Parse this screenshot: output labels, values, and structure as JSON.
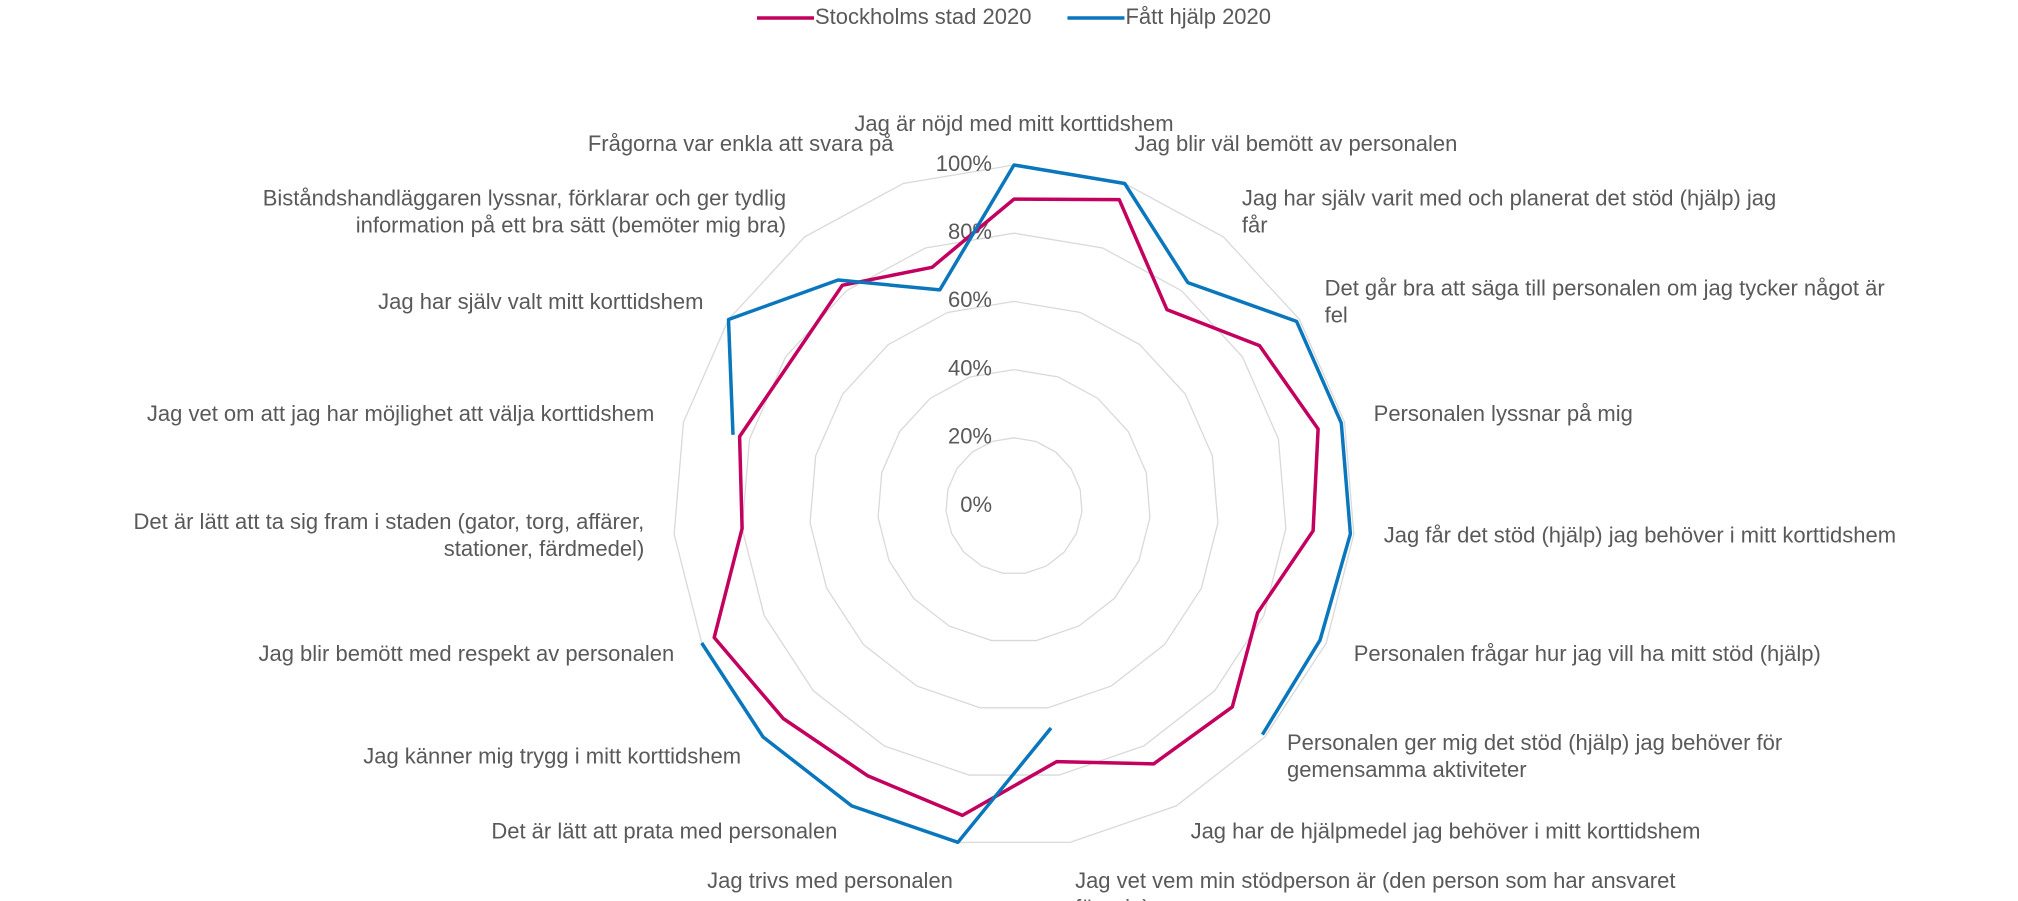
{
  "chart_data": {
    "type": "radar",
    "categories": [
      "Jag är nöjd med mitt korttidshem",
      "Jag blir väl bemött av personalen",
      "Jag har själv varit med och planerat det stöd (hjälp) jag får",
      "Det går bra att säga till personalen om jag tycker något är fel",
      "Personalen lyssnar på mig",
      "Jag får det stöd (hjälp) jag behöver i mitt korttidshem",
      "Personalen frågar hur jag vill ha mitt stöd (hjälp)",
      "Personalen ger mig det stöd (hjälp) jag behöver för gemensamma aktiviteter",
      "Jag har de hjälpmedel jag behöver i mitt korttidshem",
      "Jag vet vem min stödperson är (den person som har ansvaret för mig)",
      "Jag trivs med personalen",
      "Det är lätt att prata med personalen",
      "Jag känner mig trygg i mitt korttidshem",
      "Jag blir bemött med respekt av personalen",
      "Det är lätt att ta sig fram i staden (gator, torg, affärer, stationer, färdmedel)",
      "Jag vet om att jag har möjlighet att välja korttidshem",
      "Jag har själv valt mitt korttidshem",
      "Biståndshandläggaren lyssnar, förklarar och ger tydlig information på ett bra sätt (bemöter mig bra)",
      "Frågorna var enkla att svara på"
    ],
    "series": [
      {
        "name": "Stockholms stad 2020",
        "color": "#c4005f",
        "values": [
          90,
          95,
          73,
          86,
          92,
          88,
          78,
          87,
          86,
          76,
          92,
          90,
          92,
          96,
          80,
          83,
          78,
          82,
          74
        ]
      },
      {
        "name": "Fått hjälp 2020",
        "color": "#0a77bd",
        "values": [
          100,
          100,
          83,
          99,
          99,
          99,
          98,
          99,
          null,
          66,
          100,
          100,
          100,
          100,
          null,
          85,
          100,
          84,
          67
        ]
      }
    ],
    "ylim": [
      0,
      100
    ],
    "yticks": [
      {
        "value": 0,
        "label": "0%"
      },
      {
        "value": 20,
        "label": "20%"
      },
      {
        "value": 40,
        "label": "40%"
      },
      {
        "value": 60,
        "label": "60%"
      },
      {
        "value": 80,
        "label": "80%"
      },
      {
        "value": 100,
        "label": "100%"
      }
    ],
    "grid": true,
    "legend": "top"
  }
}
